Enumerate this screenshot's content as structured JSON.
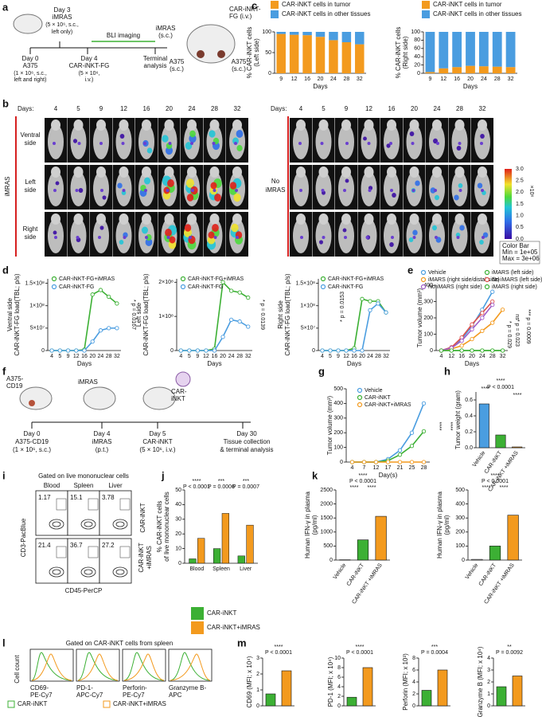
{
  "panel_letters": [
    "a",
    "b",
    "c",
    "d",
    "e",
    "f",
    "g",
    "h",
    "i",
    "j",
    "k",
    "l",
    "m"
  ],
  "panel_a": {
    "texts": [
      "Day 0",
      "A375",
      "(1 × 10⁶, s.c.,",
      "left and right)",
      "Day 3",
      "iMRAS",
      "(5 × 10⁶, s.c.,",
      "left only)",
      "Day 4",
      "CAR-iNKT-FG",
      "(5 × 10⁶,",
      "i.v.)",
      "BLI imaging",
      "Terminal",
      "analysis",
      "iMRAS",
      "(s.c.)",
      "CAR-iNKT-",
      "FG (i.v.)",
      "A375",
      "(s.c.)",
      "A375",
      "(s.c.)"
    ]
  },
  "panel_b": {
    "days_label": "Days:",
    "days": [
      "4",
      "5",
      "9",
      "12",
      "16",
      "20",
      "24",
      "28",
      "32"
    ],
    "rows": [
      [
        "Ventral",
        "side"
      ],
      [
        "Left",
        "side"
      ],
      [
        "Right",
        "side"
      ]
    ],
    "group_left": "iMRAS",
    "group_right": [
      "No",
      "iMRAS"
    ],
    "colorbar": {
      "ticks": [
        "3.0",
        "2.5",
        "2.0",
        "1.5",
        "1.0",
        "0.5",
        "0.0"
      ],
      "unit": "×10⁶",
      "caption": [
        "Color Bar",
        "Min = 1e+05",
        "Max = 3e+06"
      ]
    }
  },
  "panel_f": {
    "texts": [
      "A375-",
      "CD19",
      "iMRAS",
      "CAR-",
      "iNKT",
      "Day 0",
      "A375-CD19",
      "(1 × 10⁶, s.c.)",
      "Day 4",
      "iMRAS",
      "(p.t.)",
      "Day 5",
      "CAR-iNKT",
      "(5 × 10⁶, i.v.)",
      "Day 30",
      "Tissue collection",
      "& terminal analysis"
    ]
  },
  "panel_i": {
    "gate": "Gated on live mononuclear cells",
    "columns": [
      "Blood",
      "Spleen",
      "Liver"
    ],
    "percentages": [
      [
        "1.17",
        "15.1",
        "3.78"
      ],
      [
        "21.4",
        "36.7",
        "27.2"
      ]
    ],
    "rows": [
      [
        "CAR-iNKT"
      ],
      [
        "CAR-iNKT",
        "+iMRAS"
      ]
    ],
    "y_axis": "CD3-PacBlue",
    "x_axis": "CD45-PerCP"
  },
  "panel_l": {
    "gate": "Gated on CAR-iNKT cells from spleen",
    "y_axis": "Cell count",
    "markers": [
      [
        "CD69-",
        "PE-Cy7"
      ],
      [
        "PD-1-",
        "APC-Cy7"
      ],
      [
        "Perforin-",
        "PE-Cy7"
      ],
      [
        "Granzyme B-",
        "APC"
      ]
    ],
    "legend": [
      "CAR-iNKT",
      "CAR-iNKT+iMRAS"
    ]
  },
  "chart_data": [
    {
      "type": "stacked-bar",
      "y_label": [
        "% CAR-iNKT cells",
        "(Left side)"
      ],
      "x_label": "Days",
      "categories": [
        "9",
        "12",
        "16",
        "20",
        "24",
        "28",
        "32"
      ],
      "series": [
        {
          "name": "CAR-iNKT cells in tumor",
          "color": "#f39a1e",
          "values": [
            95,
            93,
            92,
            88,
            80,
            75,
            70
          ]
        },
        {
          "name": "CAR-iNKT cells in other tissues",
          "color": "#4a9de0",
          "values": [
            5,
            7,
            8,
            12,
            20,
            25,
            30
          ]
        }
      ],
      "ylim": [
        0,
        100
      ],
      "yticks": [
        0,
        50,
        100
      ]
    },
    {
      "type": "stacked-bar",
      "y_label": [
        "% CAR-iNKT cells",
        "(Right side)"
      ],
      "x_label": "Days",
      "categories": [
        "9",
        "12",
        "16",
        "20",
        "24",
        "28",
        "32"
      ],
      "series": [
        {
          "name": "CAR-iNKT cells in tumor",
          "color": "#f39a1e",
          "values": [
            3,
            12,
            15,
            18,
            17,
            16,
            15
          ]
        },
        {
          "name": "CAR-iNKT cells in other tissues",
          "color": "#4a9de0",
          "values": [
            97,
            88,
            85,
            82,
            83,
            84,
            85
          ]
        }
      ],
      "ylim": [
        0,
        100
      ],
      "yticks": [
        0,
        20,
        40,
        60,
        80,
        100
      ]
    },
    {
      "type": "line",
      "y_label": [
        "Ventral side",
        "CAR-iNKT-FG load(TBL; p/s)"
      ],
      "x_label": "Days",
      "categories": [
        "4",
        "5",
        "9",
        "12",
        "16",
        "20",
        "24",
        "28",
        "32"
      ],
      "series": [
        {
          "name": "CAR-iNKT-FG+iMRAS",
          "color": "#3cb034",
          "values": [
            0,
            0,
            0,
            0,
            2000000.0,
            125000000.0,
            135000000.0,
            120000000.0,
            105000000.0
          ]
        },
        {
          "name": "CAR-iNKT-FG",
          "color": "#4a9de0",
          "values": [
            0,
            0,
            0,
            0,
            0,
            20000000.0,
            45000000.0,
            50000000.0,
            50000000.0
          ]
        }
      ],
      "ylim": [
        0,
        160000000.0
      ],
      "yticks": [
        0,
        {
          "value": 50000000.0,
          "label": "5×10⁷"
        },
        {
          "value": 100000000.0,
          "label": "1×10⁸"
        },
        {
          "value": 150000000.0,
          "label": "1.5×10⁸"
        }
      ],
      "annotations": [
        "* p = 0.0167"
      ]
    },
    {
      "type": "line",
      "y_label": [
        "Left side",
        "CAR-iNKT-FG load(TBL; p/s)"
      ],
      "x_label": "Days",
      "categories": [
        "4",
        "5",
        "9",
        "12",
        "16",
        "20",
        "24",
        "28",
        "32"
      ],
      "series": [
        {
          "name": "CAR-iNKT-FG+iMRAS",
          "color": "#3cb034",
          "values": [
            0,
            0,
            0,
            0,
            5000000.0,
            200000000.0,
            175000000.0,
            170000000.0,
            155000000.0
          ]
        },
        {
          "name": "CAR-iNKT-FG",
          "color": "#4a9de0",
          "values": [
            0,
            0,
            0,
            0,
            0,
            40000000.0,
            90000000.0,
            85000000.0,
            70000000.0
          ]
        }
      ],
      "ylim": [
        0,
        210000000.0
      ],
      "yticks": [
        0,
        {
          "value": 100000000.0,
          "label": "1×10⁸"
        },
        {
          "value": 200000000.0,
          "label": "2×10⁸"
        }
      ],
      "annotations": [
        "* p = 0.0139"
      ]
    },
    {
      "type": "line",
      "y_label": [
        "Right side",
        "CAR-iNKT-FG load(TBL; p/s)"
      ],
      "x_label": "Days",
      "categories": [
        "4",
        "5",
        "9",
        "12",
        "16",
        "20",
        "24",
        "28",
        "32"
      ],
      "series": [
        {
          "name": "CAR-iNKT-FG+iMRAS",
          "color": "#3cb034",
          "values": [
            0,
            0,
            0,
            0,
            5000000.0,
            115000000.0,
            110000000.0,
            110000000.0,
            85000000.0
          ]
        },
        {
          "name": "CAR-iNKT-FG",
          "color": "#4a9de0",
          "values": [
            0,
            0,
            0,
            0,
            0,
            0,
            90000000.0,
            105000000.0,
            85000000.0
          ]
        }
      ],
      "ylim": [
        0,
        160000000.0
      ],
      "yticks": [
        0,
        {
          "value": 50000000.0,
          "label": "5×10⁷"
        },
        {
          "value": 100000000.0,
          "label": "1×10⁸"
        },
        {
          "value": 150000000.0,
          "label": "1.5×10⁸"
        }
      ],
      "annotations": [
        "* p = 0.0153"
      ]
    },
    {
      "type": "line",
      "y_label": [
        "Tumor volume (mm³)"
      ],
      "x_label": "Days",
      "categories": [
        "4",
        "12",
        "16",
        "20",
        "24",
        "28",
        "32"
      ],
      "series": [
        {
          "name": "Vehicle",
          "color": "#4a9de0",
          "values": [
            0,
            20,
            70,
            150,
            250,
            360,
            null
          ]
        },
        {
          "name": "iMARS (left side)",
          "color": "#3cb034",
          "values": [
            0,
            0,
            0,
            0,
            0,
            0,
            0
          ]
        },
        {
          "name": "iMARS (right side/distal side)",
          "color": "#f39a1e",
          "values": [
            0,
            10,
            30,
            70,
            120,
            170,
            250
          ]
        },
        {
          "name": "No iMARS (left side)",
          "color": "#e0504a",
          "values": [
            0,
            20,
            80,
            160,
            230,
            300,
            null
          ]
        },
        {
          "name": "No iMARS (right side)",
          "color": "#a05cc8",
          "values": [
            0,
            15,
            60,
            130,
            200,
            280,
            null
          ]
        },
        {
          "name": "iMARS (right side)",
          "color": "#3cb034",
          "values": [
            0,
            0,
            0,
            0,
            0,
            0,
            0
          ]
        }
      ],
      "ylim": [
        0,
        400
      ],
      "yticks": [
        0,
        100,
        200,
        300,
        400
      ],
      "annotations": [
        "ns",
        "* p = 0.023",
        "*** p = 0.0009",
        "* p = 0.029"
      ]
    },
    {
      "type": "line",
      "y_label": [
        "Tumor volume (mm³)"
      ],
      "x_label": "Day(s)",
      "categories": [
        "4",
        "7",
        "12",
        "17",
        "21",
        "25",
        "28"
      ],
      "series": [
        {
          "name": "Vehicle",
          "color": "#4a9de0",
          "values": [
            0,
            0,
            0,
            20,
            80,
            200,
            400
          ]
        },
        {
          "name": "CAR-iNKT",
          "color": "#3cb034",
          "values": [
            0,
            0,
            0,
            10,
            50,
            110,
            210
          ]
        },
        {
          "name": "CAR-iNKT+iMRAS",
          "color": "#f39a1e",
          "values": [
            0,
            0,
            0,
            0,
            0,
            0,
            0
          ]
        }
      ],
      "ylim": [
        0,
        500
      ],
      "yticks": [
        0,
        100,
        200,
        300,
        400,
        500
      ],
      "annotations": [
        "****",
        "****"
      ]
    },
    {
      "type": "bar",
      "y_label": [
        "Tumor weight (gram)"
      ],
      "categories": [
        "Vehicle",
        "CAR-iNKT",
        "CAR-iNKT +iMRAS"
      ],
      "values": [
        0.55,
        0.16,
        0.01
      ],
      "colors": [
        "#4a9de0",
        "#3cb034",
        "#f39a1e"
      ],
      "ylim": [
        0,
        0.7
      ],
      "yticks": [
        {
          "value": 0,
          "label": "0.0"
        },
        {
          "value": 0.2,
          "label": "0.2"
        },
        {
          "value": 0.4,
          "label": "0.4"
        },
        {
          "value": 0.6,
          "label": "0.6"
        }
      ],
      "annotations": [
        "****",
        "P < 0.0001",
        "****",
        "****"
      ]
    },
    {
      "type": "grouped-bar",
      "y_label": [
        "% CAR-iNKT cells",
        "of live mononuclear cells"
      ],
      "categories": [
        "Blood",
        "Spleen",
        "Liver"
      ],
      "series": [
        {
          "name": "CAR-iNKT",
          "color": "#3cb034",
          "values": [
            3,
            10,
            5
          ]
        },
        {
          "name": "CAR-iNKT+iMRAS",
          "color": "#f39a1e",
          "values": [
            17,
            34,
            26
          ]
        }
      ],
      "ylim": [
        0,
        50
      ],
      "yticks": [
        0,
        10,
        20,
        30,
        40,
        50
      ],
      "annotations": [
        "****",
        "P < 0.0001",
        "***",
        "P = 0.0006",
        "***",
        "P = 0.0007"
      ]
    },
    {
      "type": "bar",
      "y_label": [
        "Human IFN-γ in plasma",
        "(pg/ml)"
      ],
      "categories": [
        "Vehicle",
        "CAR-iNKT",
        "CAR-iNKT +iMRAS"
      ],
      "values": [
        10,
        720,
        1560
      ],
      "colors": [
        "#ffffff",
        "#3cb034",
        "#f39a1e"
      ],
      "ylim": [
        0,
        2500
      ],
      "yticks": [
        0,
        500,
        1000,
        1500,
        2000,
        2500
      ],
      "annotations": [
        "****",
        "P < 0.0001",
        "****",
        "****"
      ]
    },
    {
      "type": "bar",
      "y_label": [
        "Human IFN-γ in plasma",
        "(pg/ml)"
      ],
      "categories": [
        "Vehicle",
        "CAR-iNKT",
        "CAR-iNKT +iMRAS"
      ],
      "values": [
        5,
        100,
        320
      ],
      "colors": [
        "#ffffff",
        "#3cb034",
        "#f39a1e"
      ],
      "ylim": [
        0,
        500
      ],
      "yticks": [
        0,
        100,
        200,
        300,
        400,
        500
      ],
      "annotations": [
        "****",
        "P < 0.0001",
        "****",
        "****"
      ]
    },
    {
      "type": "bar",
      "y_label": [
        "CD69 (MFI; x 10⁴)"
      ],
      "categories": [
        null,
        null
      ],
      "values": [
        0.75,
        2.2
      ],
      "colors": [
        "#3cb034",
        "#f39a1e"
      ],
      "ylim": [
        0,
        3
      ],
      "yticks": [
        0,
        1,
        2,
        3
      ],
      "annotations": [
        "****",
        "P < 0.0001"
      ]
    },
    {
      "type": "bar",
      "y_label": [
        "PD-1 (MFI; x 10⁴)"
      ],
      "categories": [
        null,
        null
      ],
      "values": [
        1.8,
        8
      ],
      "colors": [
        "#3cb034",
        "#f39a1e"
      ],
      "ylim": [
        0,
        10
      ],
      "yticks": [
        0,
        2,
        4,
        6,
        8,
        10
      ],
      "annotations": [
        "****",
        "P < 0.0001"
      ]
    },
    {
      "type": "bar",
      "y_label": [
        "Perforin (MFI; x 10³)"
      ],
      "categories": [
        null,
        null
      ],
      "values": [
        2.6,
        6
      ],
      "colors": [
        "#3cb034",
        "#f39a1e"
      ],
      "ylim": [
        0,
        8
      ],
      "yticks": [
        0,
        2,
        4,
        6,
        8
      ],
      "annotations": [
        "***",
        "P = 0.0004"
      ]
    },
    {
      "type": "bar",
      "y_label": [
        "Granzyme B (MFI; x 10⁴)"
      ],
      "categories": [
        null,
        null
      ],
      "values": [
        1.6,
        2.5
      ],
      "colors": [
        "#3cb034",
        "#f39a1e"
      ],
      "ylim": [
        0,
        4
      ],
      "yticks": [
        0,
        1,
        2,
        3,
        4
      ],
      "annotations": [
        "**",
        "P = 0.0092"
      ]
    }
  ]
}
